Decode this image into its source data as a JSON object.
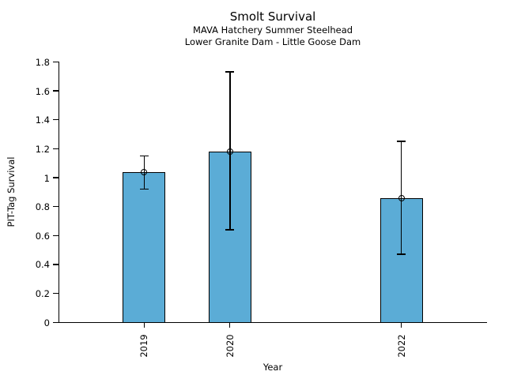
{
  "chart_data": {
    "type": "bar",
    "title": "Smolt Survival",
    "subtitle_line1": "MAVA Hatchery Summer Steelhead",
    "subtitle_line2": "Lower Granite Dam - Little Goose Dam",
    "xlabel": "Year",
    "ylabel": "PIT-Tag Survival",
    "categories": [
      "2019",
      "2020",
      "2022"
    ],
    "x_positions": [
      2019,
      2020,
      2022
    ],
    "values": [
      1.04,
      1.18,
      0.86
    ],
    "error_low": [
      0.92,
      0.64,
      0.47
    ],
    "error_high": [
      1.15,
      1.73,
      1.25
    ],
    "y_ticks": [
      0,
      0.2,
      0.4,
      0.6,
      0.8,
      1,
      1.2,
      1.4,
      1.6,
      1.8
    ],
    "ylim": [
      0,
      1.8
    ],
    "xlim": [
      2018,
      2023
    ],
    "bar_width_years": 0.5,
    "bar_color": "#5BACD6",
    "bar_edge_color": "#000000",
    "error_color": "#000000",
    "marker": "open-circle",
    "grid": false,
    "legend": null,
    "background_color": "#ffffff"
  }
}
